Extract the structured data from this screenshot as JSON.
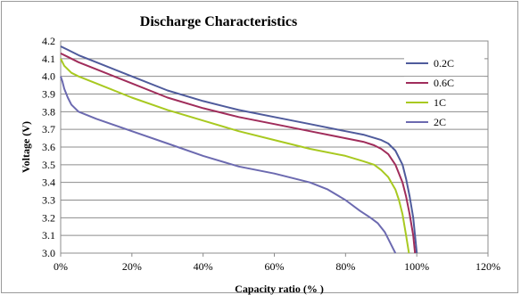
{
  "chart_data": {
    "type": "line",
    "title": "Discharge Characteristics",
    "xlabel": "Capacity ratio (% )",
    "ylabel": "Voltage (V)",
    "xlim": [
      0,
      120
    ],
    "ylim": [
      3.0,
      4.2
    ],
    "x_ticks": [
      "0%",
      "20%",
      "40%",
      "60%",
      "80%",
      "100%",
      "120%"
    ],
    "y_ticks": [
      "3.0",
      "3.1",
      "3.2",
      "3.3",
      "3.4",
      "3.5",
      "3.6",
      "3.7",
      "3.8",
      "3.9",
      "4.0",
      "4.1",
      "4.2"
    ],
    "grid": "horizontal",
    "legend_position": "right",
    "series": [
      {
        "name": "0.2C",
        "color": "#4f5b9c",
        "x": [
          0,
          2,
          5,
          10,
          20,
          30,
          40,
          50,
          60,
          70,
          80,
          85,
          90,
          92,
          94,
          96,
          97,
          98,
          99,
          99.5,
          100
        ],
        "y": [
          4.17,
          4.15,
          4.12,
          4.08,
          4.0,
          3.92,
          3.86,
          3.81,
          3.77,
          3.73,
          3.69,
          3.67,
          3.64,
          3.62,
          3.58,
          3.5,
          3.42,
          3.32,
          3.2,
          3.1,
          3.0
        ]
      },
      {
        "name": "0.6C",
        "color": "#a02d5b",
        "x": [
          0,
          2,
          5,
          10,
          20,
          30,
          40,
          50,
          60,
          70,
          80,
          85,
          88,
          90,
          92,
          94,
          96,
          97,
          98,
          99,
          99.5
        ],
        "y": [
          4.13,
          4.11,
          4.08,
          4.04,
          3.96,
          3.88,
          3.82,
          3.77,
          3.73,
          3.69,
          3.65,
          3.63,
          3.61,
          3.59,
          3.56,
          3.5,
          3.4,
          3.32,
          3.22,
          3.1,
          3.0
        ]
      },
      {
        "name": "1C",
        "color": "#a8c920",
        "x": [
          0,
          1,
          3,
          5,
          10,
          20,
          30,
          40,
          50,
          60,
          70,
          80,
          85,
          88,
          90,
          92,
          94,
          95,
          96,
          97,
          97.8
        ],
        "y": [
          4.1,
          4.06,
          4.02,
          4.0,
          3.96,
          3.88,
          3.81,
          3.75,
          3.69,
          3.64,
          3.59,
          3.55,
          3.52,
          3.5,
          3.47,
          3.43,
          3.36,
          3.3,
          3.22,
          3.1,
          3.0
        ]
      },
      {
        "name": "2C",
        "color": "#6c6ab0",
        "x": [
          0,
          0.5,
          1,
          2,
          3,
          5,
          10,
          20,
          30,
          40,
          50,
          60,
          70,
          75,
          80,
          84,
          87,
          89,
          91,
          92,
          93,
          94
        ],
        "y": [
          4.0,
          3.97,
          3.93,
          3.88,
          3.84,
          3.8,
          3.76,
          3.69,
          3.62,
          3.55,
          3.49,
          3.45,
          3.4,
          3.36,
          3.3,
          3.24,
          3.2,
          3.17,
          3.12,
          3.08,
          3.04,
          3.0
        ]
      }
    ]
  }
}
